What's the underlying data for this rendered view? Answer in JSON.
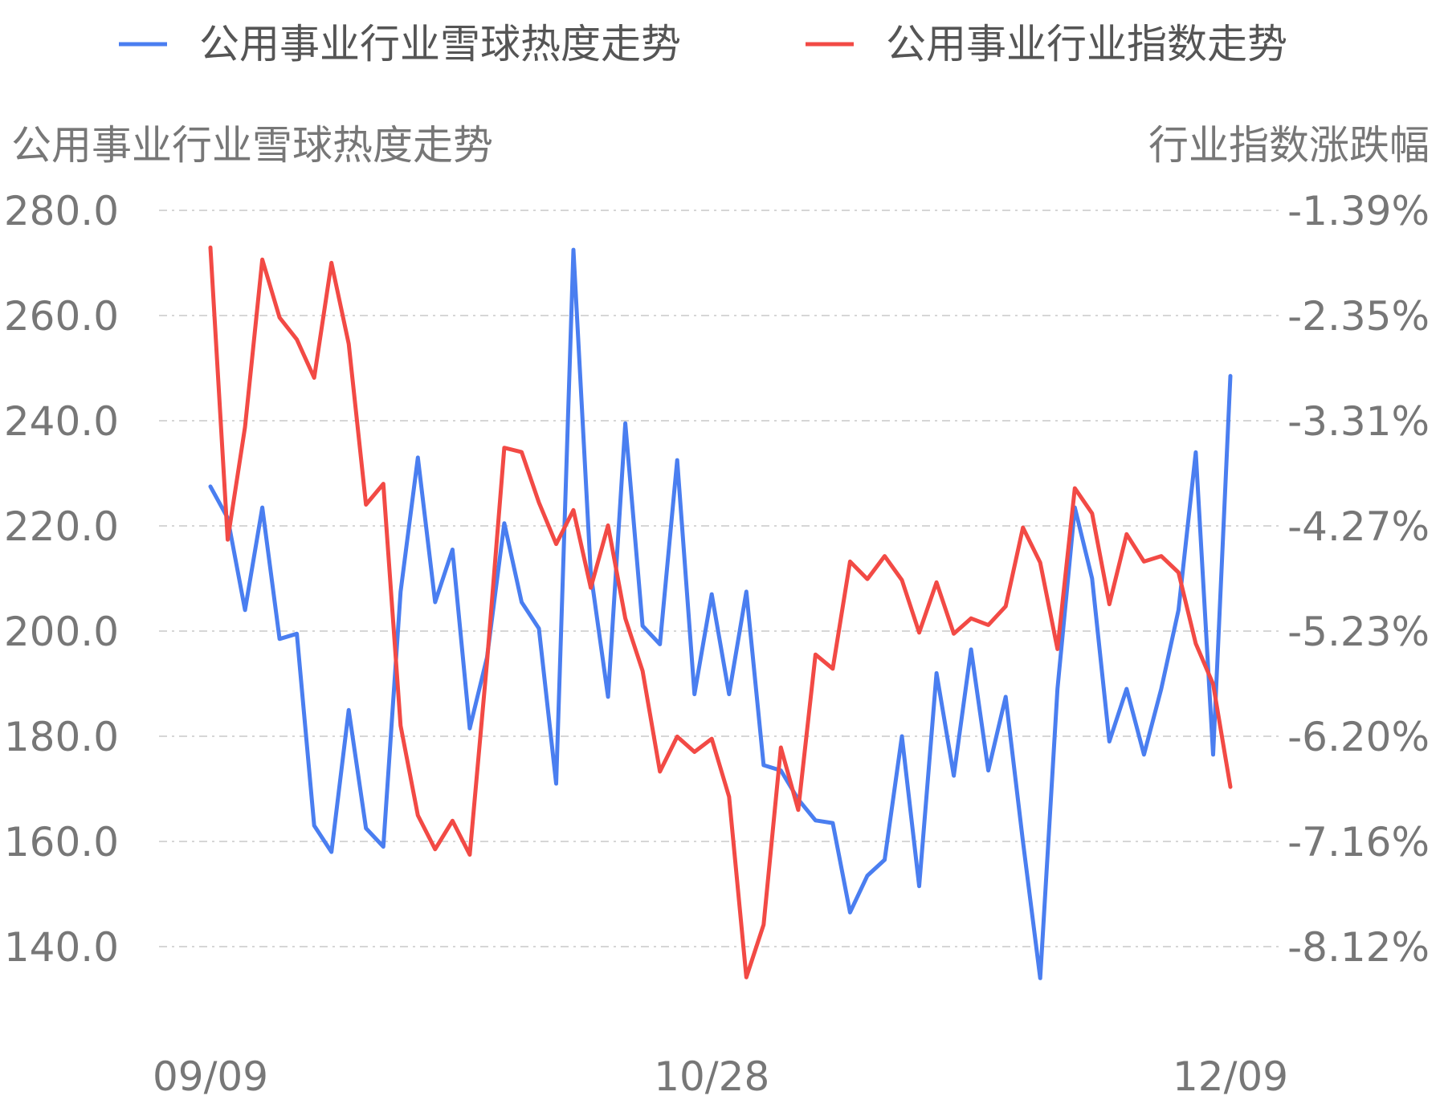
{
  "chart_data": {
    "type": "line",
    "legend": {
      "placement": "top",
      "items": [
        {
          "label": "公用事业行业雪球热度走势",
          "color": "#4a7ef0"
        },
        {
          "label": "公用事业行业指数走势",
          "color": "#f24a45"
        }
      ]
    },
    "left_axis": {
      "title": "公用事业行业雪球热度走势",
      "ticks": [
        "280.0",
        "260.0",
        "240.0",
        "220.0",
        "200.0",
        "180.0",
        "160.0",
        "140.0"
      ],
      "range": [
        133.5,
        288.0
      ]
    },
    "right_axis": {
      "title": "行业指数涨跌幅",
      "ticks": [
        "-1.39%",
        "-2.35%",
        "-3.31%",
        "-4.27%",
        "-5.23%",
        "-6.20%",
        "-7.16%",
        "-8.12%"
      ],
      "range": [
        -8.4,
        -1.0
      ]
    },
    "x_tick_labels": [
      "09/09",
      "10/28",
      "12/09"
    ],
    "x_tick_indices": [
      0,
      29,
      59
    ],
    "grid": true,
    "series": [
      {
        "name": "公用事业行业雪球热度走势",
        "axis": "left",
        "color": "#4a7ef0",
        "values": [
          227.5,
          221.5,
          204,
          223.5,
          198.5,
          199.5,
          163,
          158,
          185,
          162.5,
          159,
          207.5,
          233,
          205.5,
          215.5,
          181.5,
          195,
          220.5,
          205.5,
          200.5,
          171,
          272.5,
          211,
          187.5,
          239.5,
          201,
          197.5,
          232.5,
          188,
          207,
          188,
          207.5,
          174.5,
          173.5,
          168,
          164,
          163.5,
          146.5,
          153.5,
          156.5,
          180,
          151.5,
          192,
          172.5,
          196.5,
          173.5,
          187.5,
          160,
          134,
          189,
          223.5,
          210,
          179,
          189,
          176.5,
          189,
          204,
          234,
          176.5,
          248.5
        ]
      },
      {
        "name": "公用事业行业指数走势",
        "axis": "right",
        "color": "#f24a45",
        "values": [
          -1.73,
          -4.4,
          -3.37,
          -1.84,
          -2.37,
          -2.57,
          -2.92,
          -1.87,
          -2.61,
          -4.08,
          -3.89,
          -6.1,
          -6.92,
          -7.23,
          -6.97,
          -7.28,
          -5.52,
          -3.56,
          -3.6,
          -4.06,
          -4.44,
          -4.13,
          -4.84,
          -4.27,
          -5.12,
          -5.6,
          -6.52,
          -6.2,
          -6.34,
          -6.22,
          -6.75,
          -8.4,
          -7.92,
          -6.3,
          -6.87,
          -5.45,
          -5.58,
          -4.6,
          -4.76,
          -4.55,
          -4.77,
          -5.25,
          -4.79,
          -5.26,
          -5.12,
          -5.18,
          -5.01,
          -4.29,
          -4.61,
          -5.4,
          -3.93,
          -4.16,
          -4.99,
          -4.35,
          -4.6,
          -4.55,
          -4.7,
          -5.35,
          -5.72,
          -6.66
        ]
      }
    ]
  }
}
